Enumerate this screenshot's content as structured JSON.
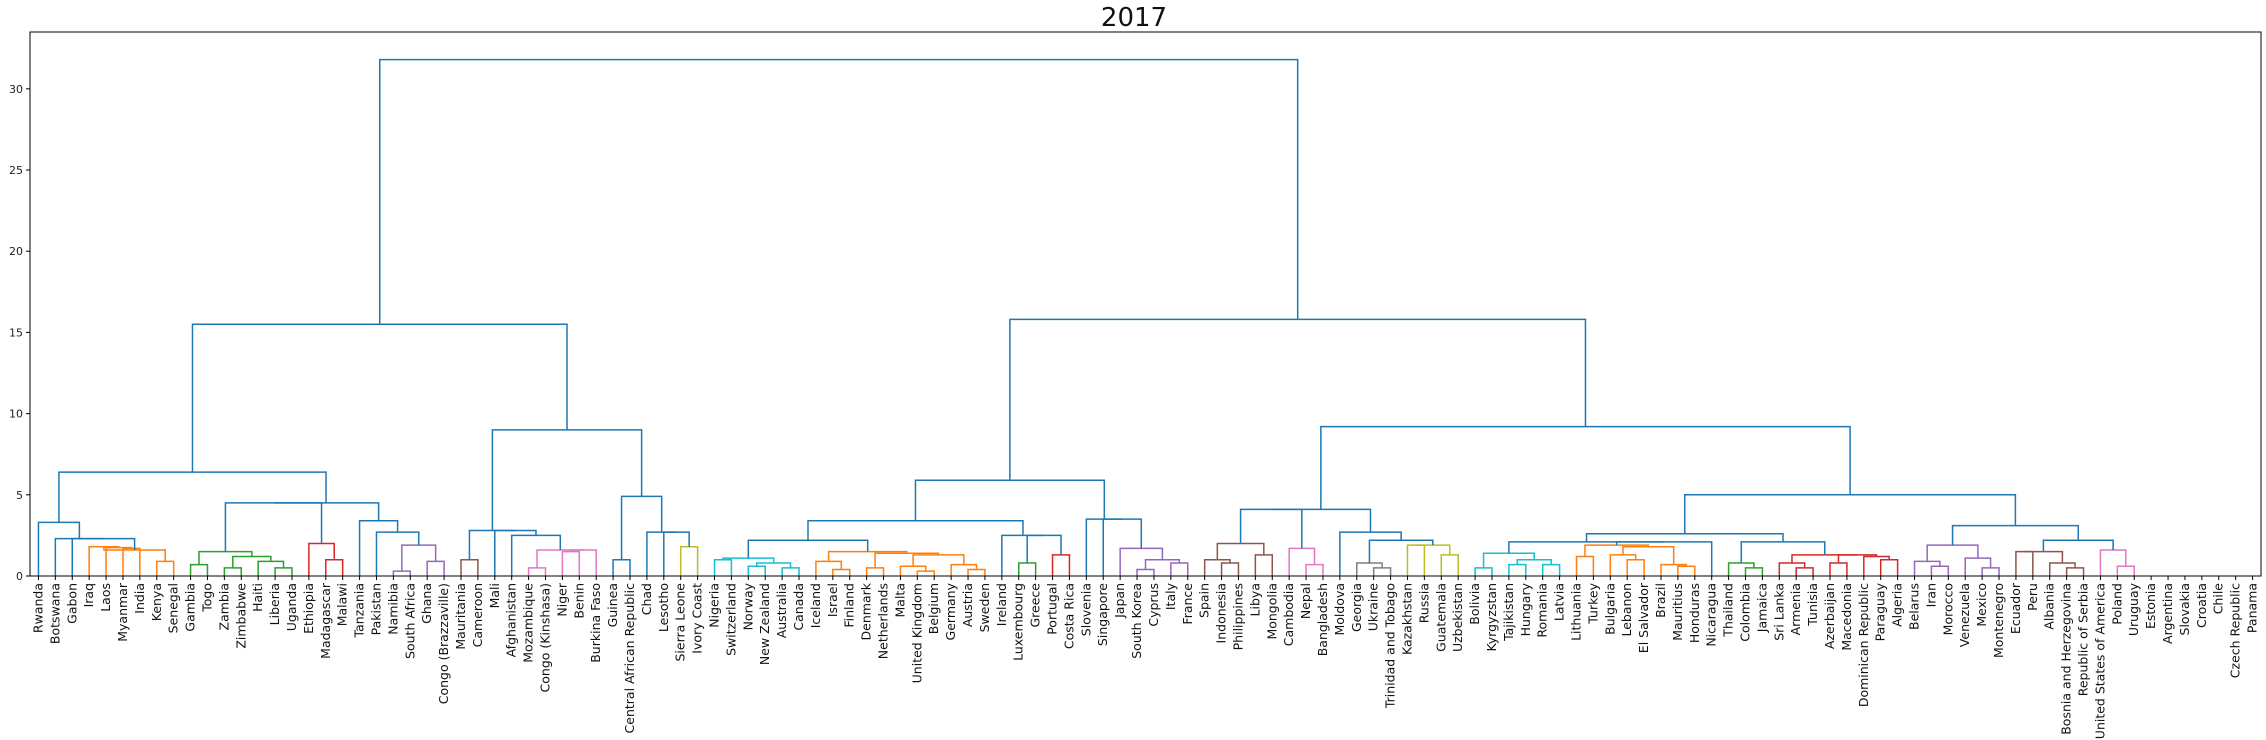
{
  "chart_data": {
    "type": "dendrogram",
    "title": "2017",
    "xlabel": "",
    "ylabel": "",
    "ylim": [
      0,
      33.5
    ],
    "yticks": [
      0,
      5,
      10,
      15,
      20,
      25,
      30
    ],
    "grid": false,
    "leaves": [
      "Rwanda",
      "Botswana",
      "Gabon",
      "Iraq",
      "Laos",
      "Myanmar",
      "India",
      "Kenya",
      "Senegal",
      "Gambia",
      "Togo",
      "Zambia",
      "Zimbabwe",
      "Haiti",
      "Liberia",
      "Uganda",
      "Ethiopia",
      "Madagascar",
      "Malawi",
      "Tanzania",
      "Pakistan",
      "Namibia",
      "South Africa",
      "Ghana",
      "Congo (Brazzaville)",
      "Mauritania",
      "Cameroon",
      "Mali",
      "Afghanistan",
      "Mozambique",
      "Congo (Kinshasa)",
      "Niger",
      "Benin",
      "Burkina Faso",
      "Guinea",
      "Central African Republic",
      "Chad",
      "Lesotho",
      "Sierra Leone",
      "Ivory Coast",
      "Nigeria",
      "Switzerland",
      "Norway",
      "New Zealand",
      "Australia",
      "Canada",
      "Iceland",
      "Israel",
      "Finland",
      "Denmark",
      "Netherlands",
      "Malta",
      "United Kingdom",
      "Belgium",
      "Germany",
      "Austria",
      "Sweden",
      "Ireland",
      "Luxembourg",
      "Greece",
      "Portugal",
      "Costa Rica",
      "Slovenia",
      "Singapore",
      "Japan",
      "South Korea",
      "Cyprus",
      "Italy",
      "France",
      "Spain",
      "Indonesia",
      "Philippines",
      "Libya",
      "Mongolia",
      "Cambodia",
      "Nepal",
      "Bangladesh",
      "Moldova",
      "Georgia",
      "Ukraine",
      "Trinidad and Tobago",
      "Kazakhstan",
      "Russia",
      "Guatemala",
      "Uzbekistan",
      "Bolivia",
      "Kyrgyzstan",
      "Tajikistan",
      "Hungary",
      "Romania",
      "Latvia",
      "Lithuania",
      "Turkey",
      "Bulgaria",
      "Lebanon",
      "El Salvador",
      "Brazil",
      "Mauritius",
      "Honduras",
      "Nicaragua",
      "Thailand",
      "Colombia",
      "Jamaica",
      "Sri Lanka",
      "Armenia",
      "Tunisia",
      "Azerbaijan",
      "Macedonia",
      "Dominican Republic",
      "Paraguay",
      "Algeria",
      "Belarus",
      "Iran",
      "Morocco",
      "Venezuela",
      "Mexico",
      "Montenegro",
      "Ecuador",
      "Peru",
      "Albania",
      "Bosnia and Herzegovina",
      "Republic of Serbia",
      "United States of America",
      "Poland",
      "Uruguay",
      "Estonia",
      "Argentina",
      "Slovakia",
      "Croatia",
      "Chile",
      "Czech Republic",
      "Panama"
    ],
    "colors": {
      "root": "#1f77b4",
      "orange": "#ff7f0e",
      "green": "#2ca02c",
      "red": "#d62728",
      "purple": "#9467bd",
      "brown": "#8c564b",
      "pink": "#e377c2",
      "gray": "#7f7f7f",
      "olive": "#bcbd22",
      "cyan": "#17becf"
    }
  }
}
